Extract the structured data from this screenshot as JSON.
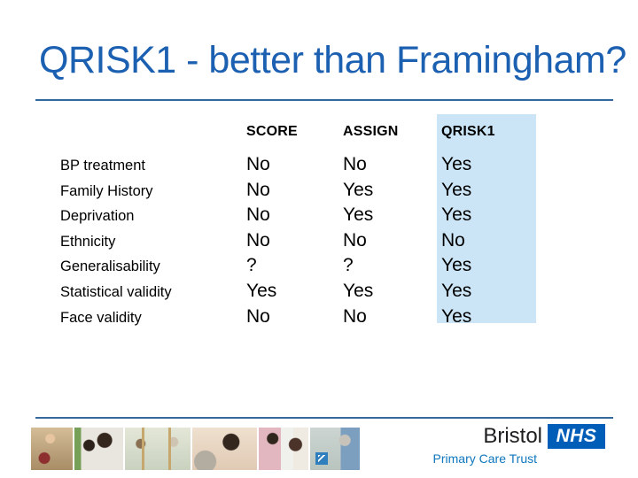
{
  "slide": {
    "title": "QRISK1 - better than Framingham?",
    "colors": {
      "title_blue": "#1c60b2",
      "rule_blue": "#33689c",
      "highlight_blue": "#cbe5f7",
      "nhs_blue": "#005eb8",
      "pct_text_blue": "#0e76bc"
    }
  },
  "table": {
    "columns": [
      "SCORE",
      "ASSIGN",
      "QRISK1"
    ],
    "highlight_column": "QRISK1",
    "rows": [
      {
        "label": "BP treatment",
        "values": [
          "No",
          "No",
          "Yes"
        ]
      },
      {
        "label": "Family History",
        "values": [
          "No",
          "Yes",
          "Yes"
        ]
      },
      {
        "label": "Deprivation",
        "values": [
          "No",
          "Yes",
          "Yes"
        ]
      },
      {
        "label": "Ethnicity",
        "values": [
          "No",
          "No",
          "No"
        ]
      },
      {
        "label": "Generalisability",
        "values": [
          "?",
          "?",
          "Yes"
        ]
      },
      {
        "label": "Statistical validity",
        "values": [
          "Yes",
          "Yes",
          "Yes"
        ]
      },
      {
        "label": "Face validity",
        "values": [
          "No",
          "No",
          "Yes"
        ]
      }
    ]
  },
  "footer": {
    "org_name": "Bristol",
    "nhs_logo": "NHS",
    "org_subtitle": "Primary Care Trust",
    "photos": [
      "child-with-ball",
      "mother-and-child",
      "exercise-class",
      "dentist-and-patient",
      "doctor-consultation",
      "reception-desk"
    ]
  }
}
